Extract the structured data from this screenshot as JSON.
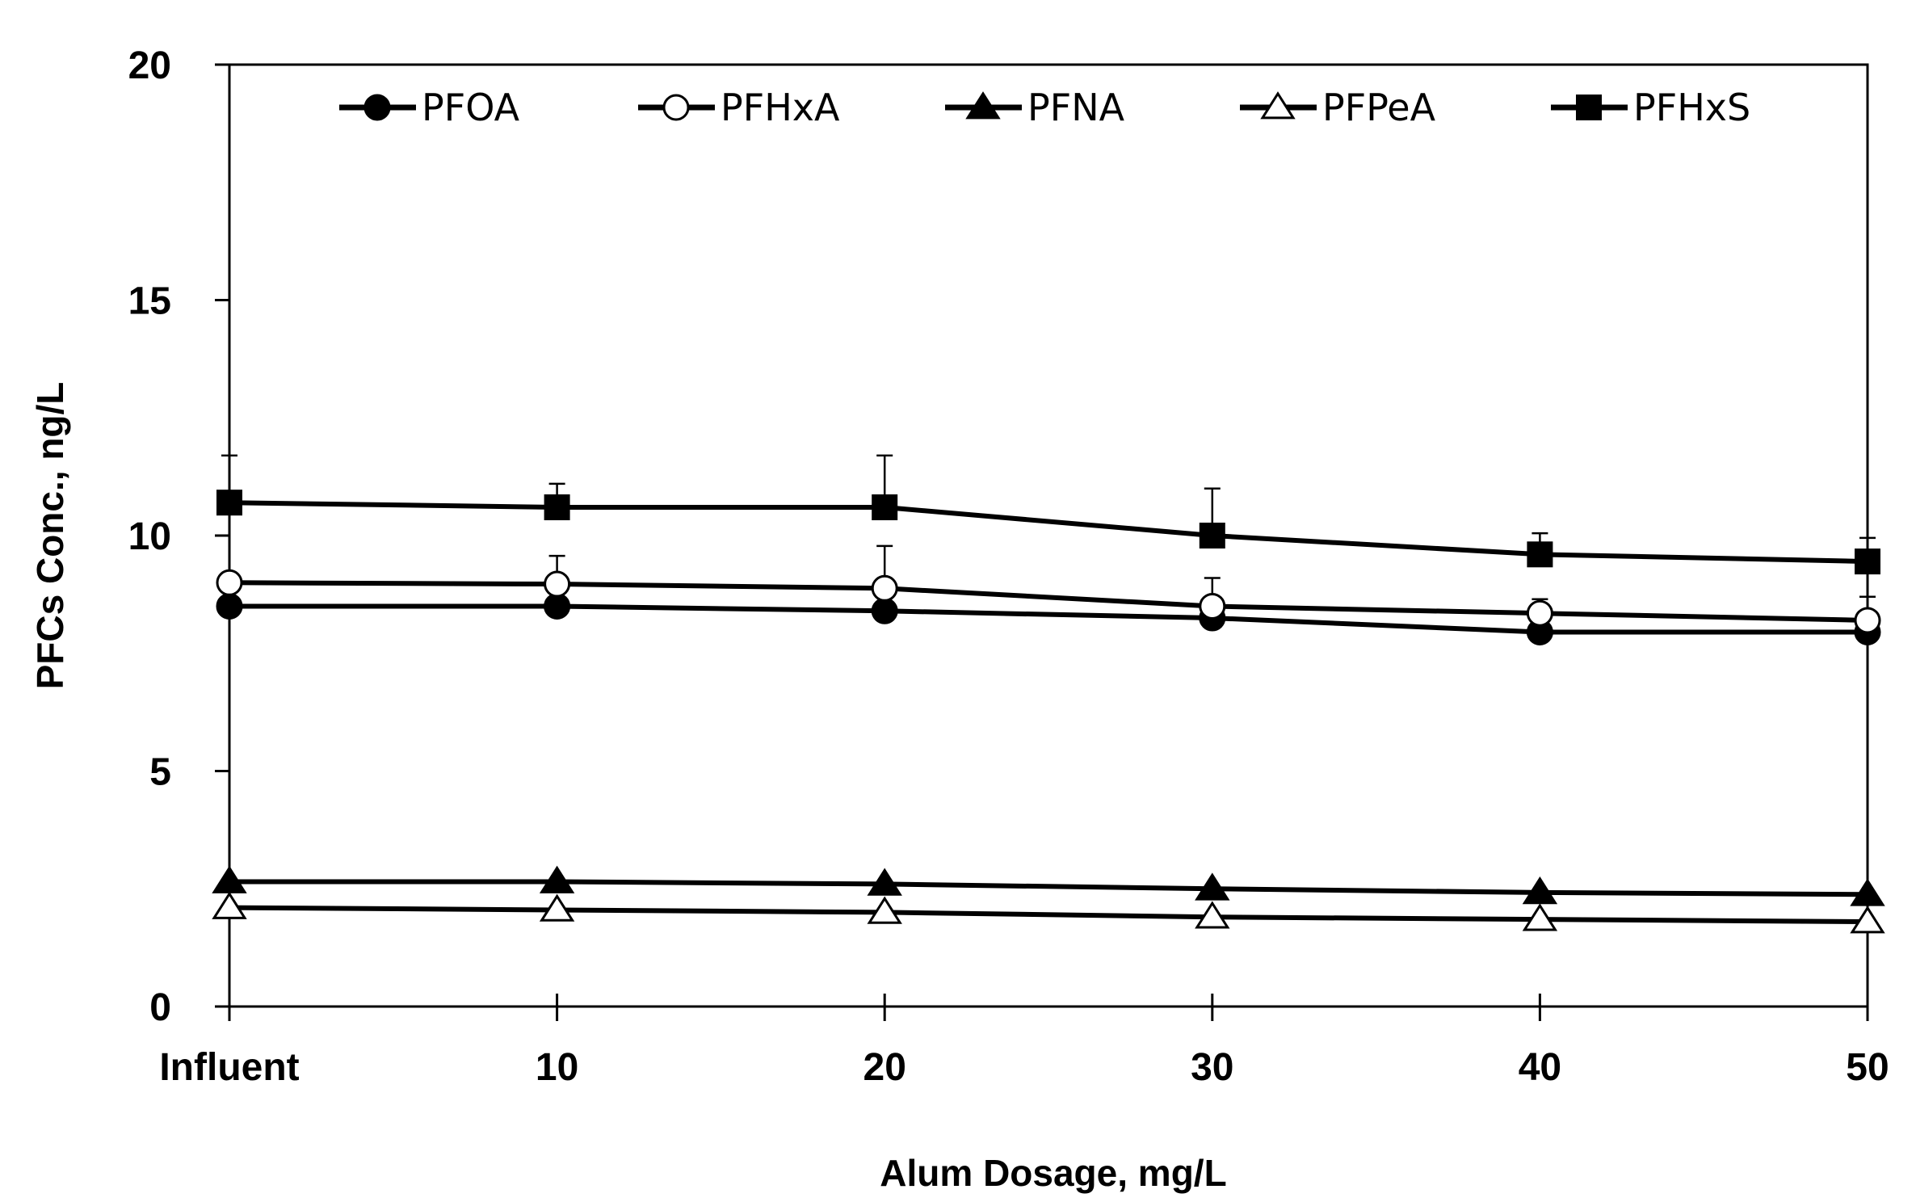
{
  "chart_data": {
    "type": "line",
    "title": "",
    "xlabel": "Alum Dosage, mg/L",
    "ylabel": "PFCs Conc., ng/L",
    "categories": [
      "Influent",
      "10",
      "20",
      "30",
      "40",
      "50"
    ],
    "ylim": [
      0,
      20
    ],
    "yticks": [
      "0",
      "5",
      "10",
      "15",
      "20"
    ],
    "ytick_values": [
      0,
      5,
      10,
      15,
      20
    ],
    "grid": false,
    "legend_position": "top",
    "series": [
      {
        "name": "PFOA",
        "marker": "circle-filled",
        "values": [
          8.5,
          8.5,
          8.4,
          8.25,
          7.95,
          7.95
        ],
        "errors": [
          0,
          0,
          0.35,
          0.3,
          0.45,
          0
        ]
      },
      {
        "name": "PFHxA",
        "marker": "circle-open",
        "values": [
          9.0,
          8.97,
          8.88,
          8.5,
          8.35,
          8.2
        ],
        "errors": [
          0,
          0.6,
          0.9,
          0.6,
          0.3,
          0.5
        ]
      },
      {
        "name": "PFNA",
        "marker": "triangle-filled",
        "values": [
          2.65,
          2.65,
          2.6,
          2.5,
          2.42,
          2.38
        ],
        "errors": [
          0,
          0,
          0,
          0,
          0,
          0
        ]
      },
      {
        "name": "PFPeA",
        "marker": "triangle-open",
        "values": [
          2.1,
          2.05,
          2.0,
          1.9,
          1.85,
          1.8
        ],
        "errors": [
          0,
          0,
          0,
          0,
          0,
          0
        ]
      },
      {
        "name": "PFHxS",
        "marker": "square-filled",
        "values": [
          10.7,
          10.6,
          10.6,
          10.0,
          9.6,
          9.45
        ],
        "errors": [
          1.0,
          0.5,
          1.1,
          1.0,
          0.45,
          0.5
        ]
      }
    ]
  }
}
